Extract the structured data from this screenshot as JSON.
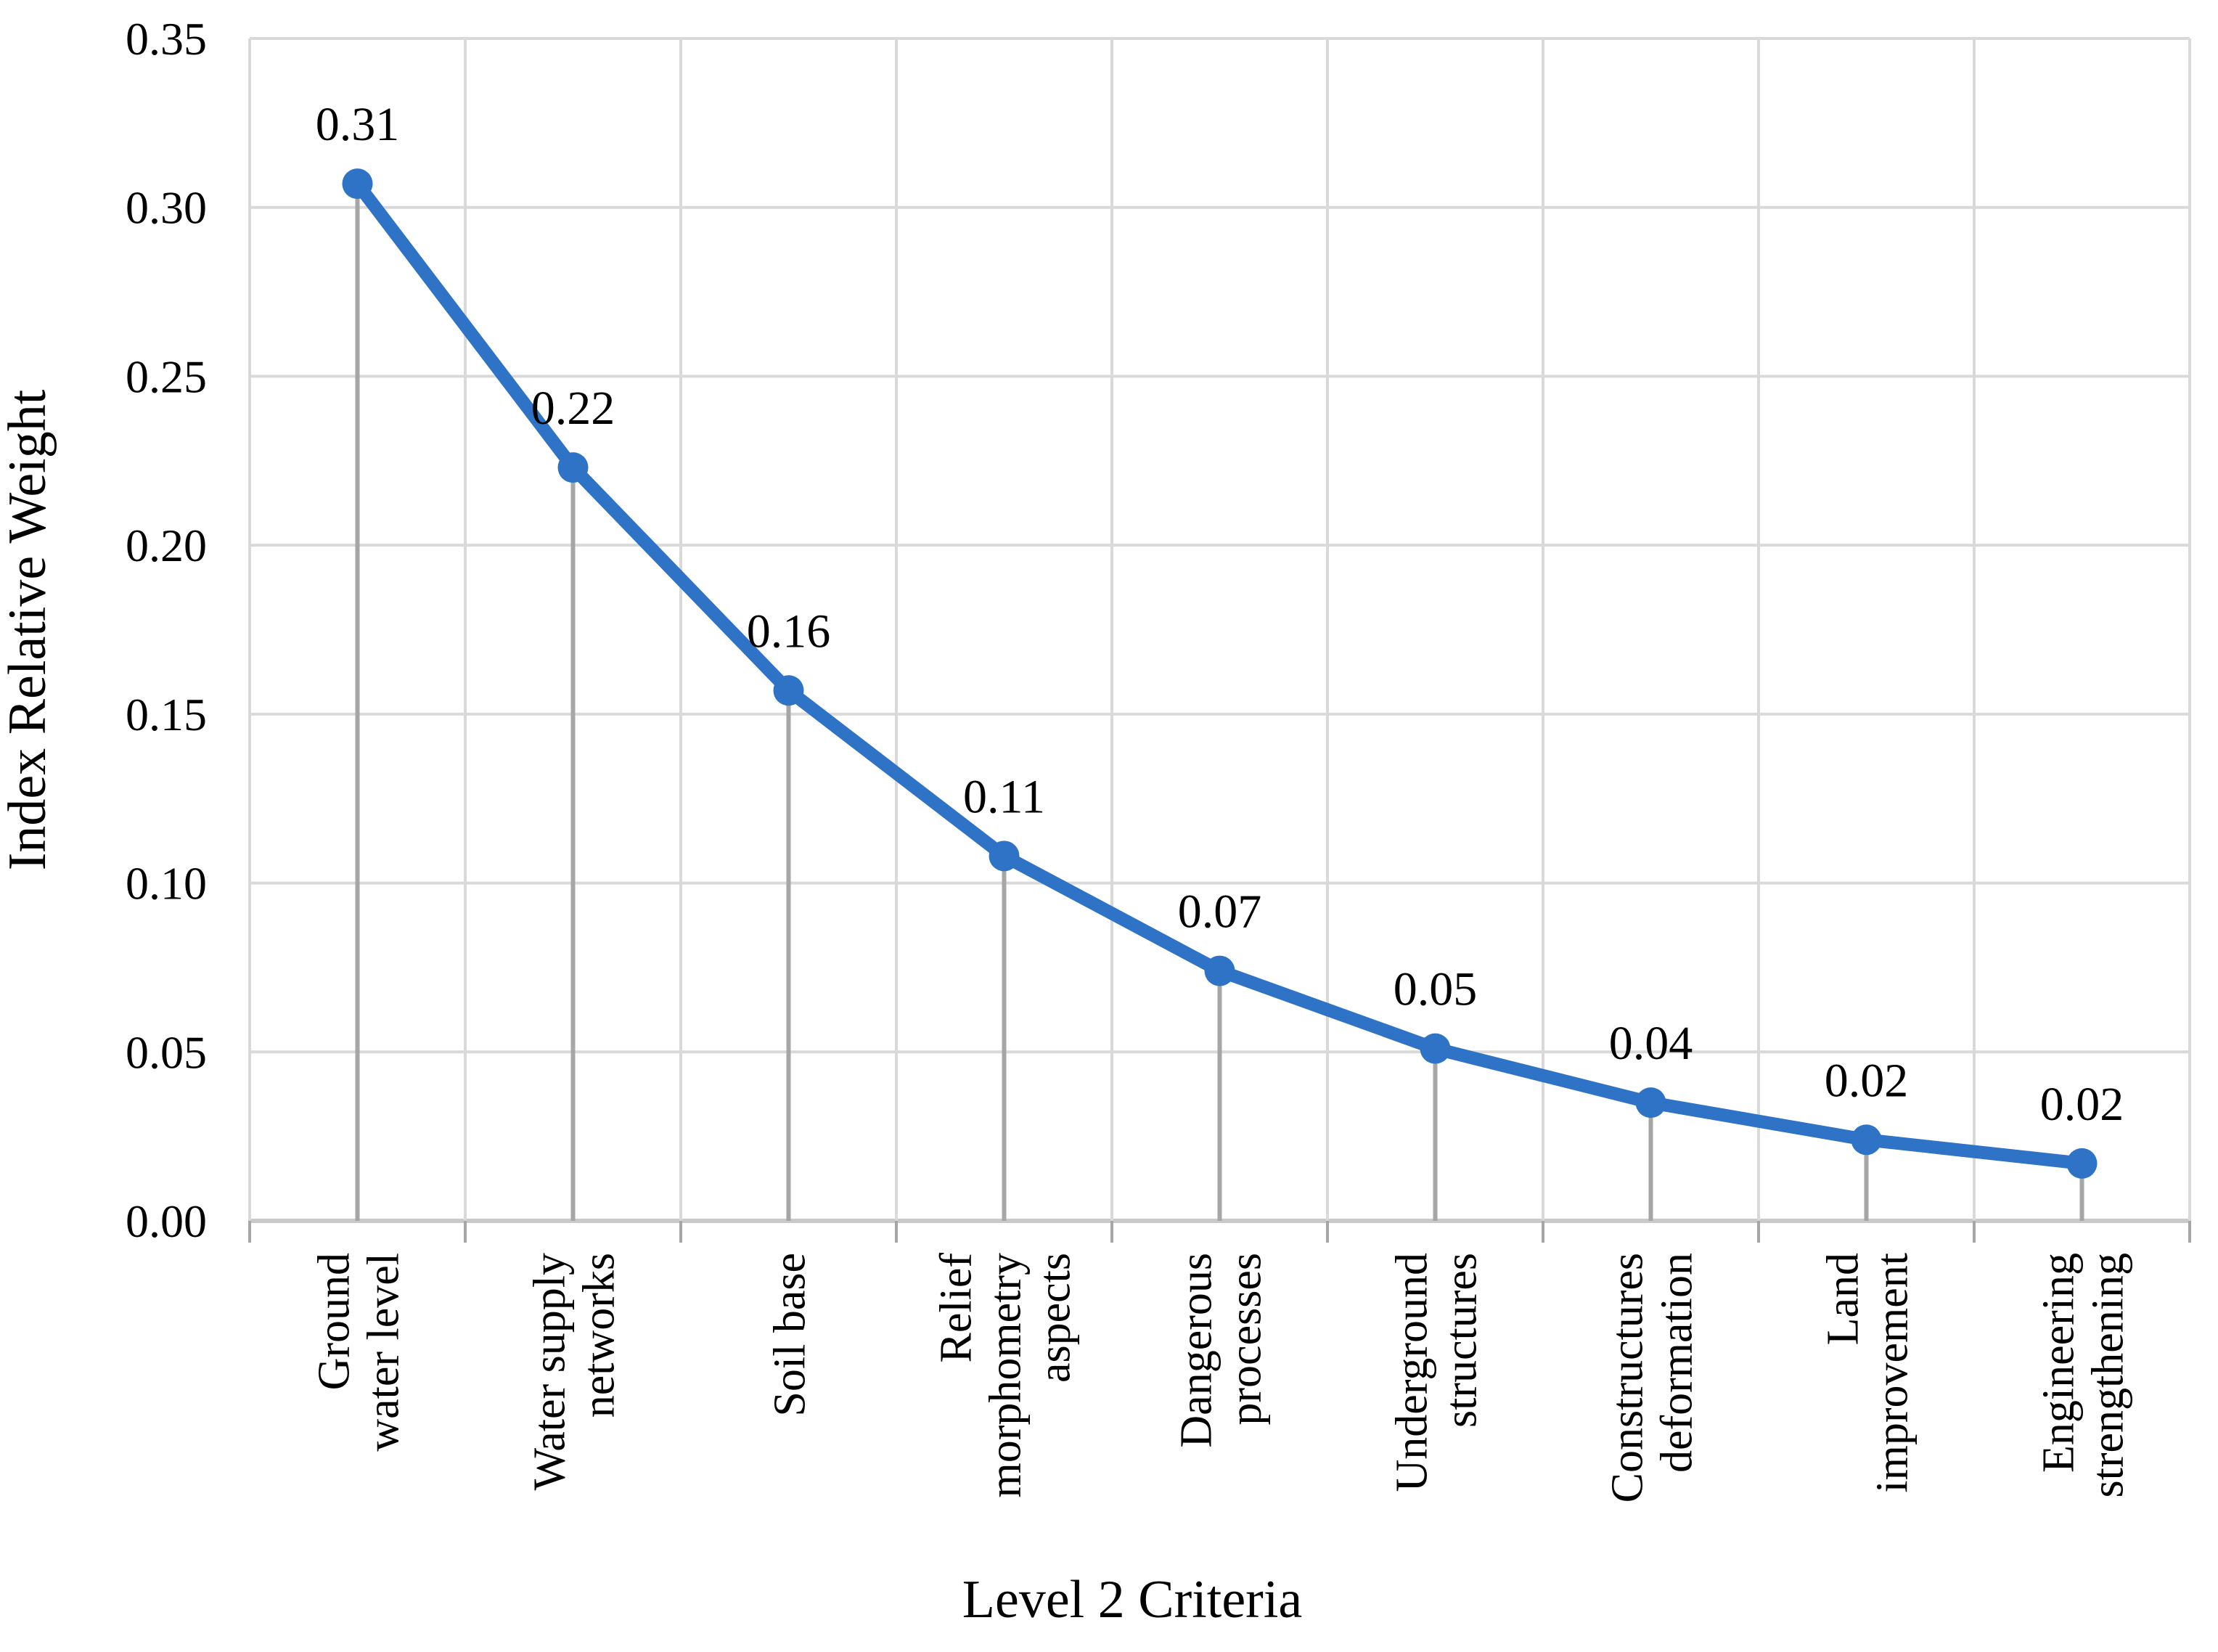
{
  "chart_data": {
    "type": "line",
    "title": "",
    "xlabel": "Level 2 Criteria",
    "ylabel": "Index Relative Weight",
    "categories": [
      {
        "label": "Ground water level",
        "lines": [
          "Ground",
          "water level"
        ]
      },
      {
        "label": "Water supply networks",
        "lines": [
          "Water supply",
          "networks"
        ]
      },
      {
        "label": "Soil base",
        "lines": [
          "Soil base"
        ]
      },
      {
        "label": "Relief morphometry aspects",
        "lines": [
          "Relief",
          "morphometry",
          "aspects"
        ]
      },
      {
        "label": "Dangerous processes",
        "lines": [
          "Dangerous",
          "processes"
        ]
      },
      {
        "label": "Underground structures",
        "lines": [
          "Underground",
          "structures"
        ]
      },
      {
        "label": "Constructures deformation",
        "lines": [
          "Constructures",
          "deformation"
        ]
      },
      {
        "label": "Land improvement",
        "lines": [
          "Land",
          "improvement"
        ]
      },
      {
        "label": "Engineering strengthening",
        "lines": [
          "Engineering",
          "strengthening"
        ]
      }
    ],
    "series": [
      {
        "name": "Index Relative Weight",
        "values": [
          0.307,
          0.223,
          0.157,
          0.108,
          0.074,
          0.051,
          0.035,
          0.024,
          0.017
        ],
        "point_labels": [
          "0.31",
          "0.22",
          "0.16",
          "0.11",
          "0.07",
          "0.05",
          "0.04",
          "0.02",
          "0.02"
        ]
      }
    ],
    "y_ticks": [
      "0.35",
      "0.30",
      "0.25",
      "0.20",
      "0.15",
      "0.10",
      "0.05",
      "0.00"
    ],
    "ylim": [
      0,
      0.35
    ],
    "grid": {
      "horizontal": true,
      "vertical": true
    },
    "legend": "none",
    "marker": "circle",
    "colors": {
      "line": "#2E73C5",
      "marker": "#2E73C5",
      "gridline": "#D9D9D9",
      "axis_line": "#C9C9C9",
      "drop_line": "#A6A6A6",
      "tick_mark": "#A6A6A6",
      "text": "#000000",
      "background": "#FFFFFF"
    }
  }
}
